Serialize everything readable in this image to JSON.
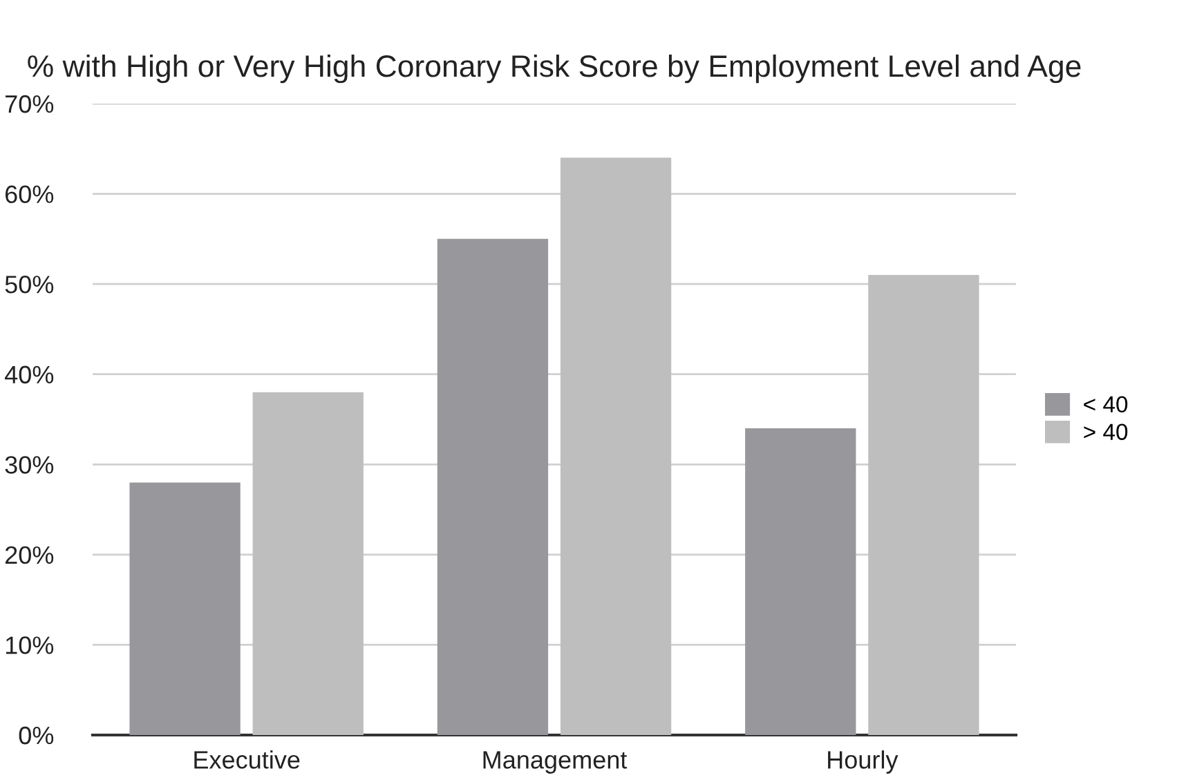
{
  "chart_data": {
    "type": "bar",
    "title": "% with High or Very High Coronary Risk Score by Employment Level and Age",
    "categories": [
      "Executive",
      "Management",
      "Hourly"
    ],
    "series": [
      {
        "name": "< 40",
        "color": "#98989c",
        "values": [
          28,
          55,
          34
        ]
      },
      {
        "name": "> 40",
        "color": "#bebebf",
        "values": [
          38,
          64,
          51
        ]
      }
    ],
    "ylim": [
      0,
      70
    ],
    "yticks": [
      {
        "value": 0,
        "label": "0%"
      },
      {
        "value": 10,
        "label": "10%"
      },
      {
        "value": 20,
        "label": "20%"
      },
      {
        "value": 30,
        "label": "30%"
      },
      {
        "value": 40,
        "label": "40%"
      },
      {
        "value": 50,
        "label": "50%"
      },
      {
        "value": 60,
        "label": "60%"
      },
      {
        "value": 70,
        "label": "70%"
      }
    ],
    "grid": "y",
    "legend": "right"
  }
}
